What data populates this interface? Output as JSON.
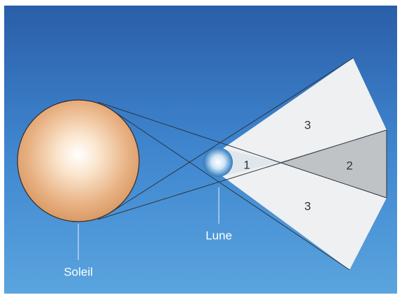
{
  "labels": {
    "sun": "Soleil",
    "moon": "Lune"
  },
  "regions": [
    {
      "label": "3"
    },
    {
      "label": "1"
    },
    {
      "label": "2"
    },
    {
      "label": "3"
    }
  ]
}
